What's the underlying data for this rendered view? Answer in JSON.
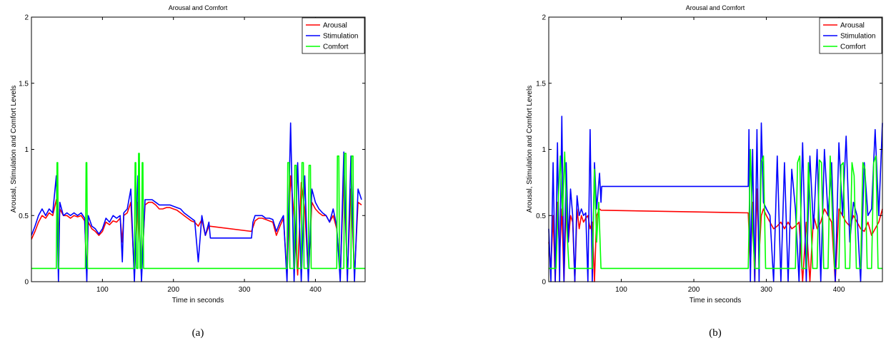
{
  "captions": [
    "(a)",
    "(b)"
  ],
  "chart_data": [
    {
      "type": "line",
      "title": "Arousal and Comfort",
      "xlabel": "Time in seconds",
      "ylabel": "Arousal, Stimulation and Comfort Levels",
      "xlim": [
        0,
        470
      ],
      "ylim": [
        0,
        2
      ],
      "xticks": [
        100,
        200,
        300,
        400
      ],
      "yticks": [
        0,
        0.5,
        1,
        1.5,
        2
      ],
      "legend": "top-right",
      "series": [
        {
          "name": "Arousal",
          "color": "#ff0000",
          "x": [
            0,
            5,
            10,
            15,
            20,
            25,
            30,
            35,
            38,
            40,
            45,
            50,
            55,
            60,
            65,
            70,
            75,
            78,
            80,
            85,
            90,
            95,
            100,
            105,
            110,
            115,
            120,
            125,
            128,
            130,
            135,
            140,
            145,
            150,
            155,
            160,
            165,
            170,
            175,
            180,
            185,
            190,
            195,
            200,
            205,
            210,
            215,
            220,
            225,
            230,
            235,
            240,
            245,
            250,
            310,
            315,
            320,
            325,
            330,
            335,
            340,
            345,
            350,
            355,
            360,
            365,
            370,
            375,
            380,
            385,
            390,
            395,
            400,
            405,
            410,
            415,
            420,
            425,
            430,
            435,
            440,
            445,
            450,
            455,
            460,
            465
          ],
          "y": [
            0.32,
            0.38,
            0.45,
            0.5,
            0.48,
            0.52,
            0.5,
            0.62,
            0.3,
            0.55,
            0.5,
            0.5,
            0.48,
            0.5,
            0.49,
            0.5,
            0.46,
            0.05,
            0.45,
            0.4,
            0.38,
            0.35,
            0.38,
            0.45,
            0.43,
            0.46,
            0.45,
            0.48,
            0.3,
            0.5,
            0.52,
            0.6,
            0.05,
            0.6,
            0.05,
            0.58,
            0.6,
            0.6,
            0.58,
            0.55,
            0.55,
            0.56,
            0.56,
            0.55,
            0.54,
            0.52,
            0.5,
            0.48,
            0.46,
            0.45,
            0.42,
            0.47,
            0.35,
            0.42,
            0.38,
            0.46,
            0.48,
            0.48,
            0.47,
            0.46,
            0.45,
            0.35,
            0.42,
            0.48,
            0.05,
            0.8,
            0.5,
            0.05,
            0.75,
            0.55,
            0.05,
            0.6,
            0.55,
            0.52,
            0.5,
            0.5,
            0.45,
            0.5,
            0.4,
            0.05,
            0.8,
            0.05,
            0.7,
            0.05,
            0.6,
            0.58
          ]
        },
        {
          "name": "Stimulation",
          "color": "#0000ff",
          "x": [
            0,
            5,
            10,
            15,
            20,
            25,
            30,
            35,
            38,
            40,
            45,
            50,
            55,
            60,
            65,
            70,
            75,
            78,
            80,
            85,
            90,
            95,
            100,
            105,
            110,
            115,
            120,
            125,
            128,
            130,
            135,
            140,
            145,
            150,
            155,
            160,
            165,
            170,
            175,
            180,
            185,
            190,
            195,
            200,
            205,
            210,
            215,
            220,
            225,
            230,
            235,
            240,
            245,
            250,
            252,
            310,
            312,
            315,
            320,
            325,
            330,
            335,
            340,
            345,
            350,
            355,
            360,
            365,
            370,
            375,
            380,
            385,
            390,
            395,
            400,
            405,
            410,
            415,
            420,
            425,
            430,
            435,
            440,
            445,
            450,
            455,
            460,
            465
          ],
          "y": [
            0.35,
            0.42,
            0.5,
            0.55,
            0.5,
            0.55,
            0.52,
            0.8,
            0.0,
            0.6,
            0.5,
            0.52,
            0.5,
            0.52,
            0.5,
            0.52,
            0.48,
            0.0,
            0.5,
            0.42,
            0.4,
            0.36,
            0.4,
            0.48,
            0.45,
            0.5,
            0.48,
            0.5,
            0.15,
            0.52,
            0.55,
            0.7,
            0.0,
            0.8,
            0.0,
            0.62,
            0.62,
            0.62,
            0.6,
            0.58,
            0.58,
            0.58,
            0.58,
            0.57,
            0.56,
            0.55,
            0.52,
            0.5,
            0.48,
            0.46,
            0.15,
            0.5,
            0.35,
            0.45,
            0.33,
            0.33,
            0.45,
            0.5,
            0.5,
            0.5,
            0.48,
            0.48,
            0.47,
            0.38,
            0.45,
            0.5,
            0.0,
            1.2,
            0.0,
            0.9,
            0.0,
            0.8,
            0.0,
            0.7,
            0.6,
            0.55,
            0.52,
            0.5,
            0.45,
            0.55,
            0.42,
            0.0,
            0.98,
            0.0,
            0.95,
            0.0,
            0.7,
            0.62
          ]
        },
        {
          "name": "Comfort",
          "color": "#00ff00",
          "x": [
            0,
            35,
            36,
            37,
            38,
            76,
            77,
            78,
            79,
            145,
            146,
            147,
            148,
            150,
            151,
            152,
            153,
            155,
            156,
            157,
            158,
            360,
            361,
            363,
            364,
            370,
            371,
            373,
            374,
            380,
            381,
            383,
            384,
            390,
            391,
            393,
            394,
            430,
            431,
            433,
            434,
            440,
            441,
            443,
            444,
            450,
            451,
            453,
            454,
            470
          ],
          "y": [
            0.1,
            0.1,
            0.9,
            0.9,
            0.1,
            0.1,
            0.9,
            0.9,
            0.1,
            0.1,
            0.9,
            0.9,
            0.1,
            0.1,
            0.97,
            0.97,
            0.1,
            0.1,
            0.9,
            0.9,
            0.1,
            0.1,
            0.9,
            0.9,
            0.1,
            0.1,
            0.88,
            0.88,
            0.1,
            0.1,
            0.9,
            0.9,
            0.1,
            0.1,
            0.88,
            0.88,
            0.1,
            0.1,
            0.95,
            0.95,
            0.1,
            0.1,
            0.97,
            0.97,
            0.1,
            0.1,
            0.95,
            0.95,
            0.1,
            0.1
          ]
        }
      ]
    },
    {
      "type": "line",
      "title": "Arousal and Comfort",
      "xlabel": "Time in seconds",
      "ylabel": "Arousal, Stimulation and Comfort Levels",
      "xlim": [
        0,
        460
      ],
      "ylim": [
        0,
        2
      ],
      "xticks": [
        100,
        200,
        300,
        400
      ],
      "yticks": [
        0,
        0.5,
        1,
        1.5,
        2
      ],
      "legend": "top-right",
      "series": [
        {
          "name": "Arousal",
          "color": "#ff0000",
          "x": [
            0,
            3,
            6,
            9,
            12,
            15,
            18,
            21,
            24,
            27,
            30,
            33,
            36,
            39,
            42,
            45,
            48,
            51,
            54,
            57,
            60,
            63,
            66,
            70,
            72,
            275,
            278,
            281,
            284,
            287,
            290,
            293,
            296,
            300,
            305,
            310,
            315,
            320,
            325,
            330,
            335,
            340,
            345,
            350,
            355,
            360,
            365,
            370,
            375,
            380,
            385,
            390,
            395,
            400,
            405,
            410,
            415,
            420,
            425,
            430,
            435,
            440,
            445,
            450,
            455,
            460
          ],
          "y": [
            0.3,
            0.1,
            0.5,
            0.0,
            0.6,
            0.2,
            0.55,
            0.0,
            0.6,
            0.3,
            0.5,
            0.45,
            0.0,
            0.55,
            0.4,
            0.5,
            0.45,
            0.48,
            0.5,
            0.4,
            0.45,
            0.0,
            0.5,
            0.55,
            0.54,
            0.52,
            0.1,
            0.6,
            0.0,
            0.7,
            0.2,
            0.5,
            0.55,
            0.5,
            0.45,
            0.4,
            0.42,
            0.45,
            0.4,
            0.45,
            0.4,
            0.42,
            0.45,
            0.0,
            0.45,
            0.0,
            0.5,
            0.4,
            0.45,
            0.55,
            0.5,
            0.45,
            0.0,
            0.55,
            0.5,
            0.45,
            0.42,
            0.5,
            0.45,
            0.4,
            0.38,
            0.45,
            0.35,
            0.4,
            0.45,
            0.55
          ]
        },
        {
          "name": "Stimulation",
          "color": "#0000ff",
          "x": [
            0,
            3,
            6,
            9,
            12,
            15,
            18,
            21,
            24,
            27,
            30,
            33,
            36,
            39,
            42,
            45,
            48,
            51,
            54,
            57,
            60,
            63,
            66,
            70,
            72,
            73,
            275,
            276,
            278,
            281,
            284,
            287,
            290,
            293,
            296,
            300,
            305,
            310,
            315,
            320,
            325,
            330,
            335,
            340,
            345,
            350,
            355,
            360,
            365,
            370,
            375,
            380,
            385,
            390,
            395,
            400,
            405,
            410,
            415,
            420,
            425,
            430,
            435,
            440,
            445,
            450,
            455,
            460
          ],
          "y": [
            0.4,
            0.0,
            0.9,
            0.0,
            1.05,
            0.0,
            1.25,
            0.0,
            0.9,
            0.3,
            0.7,
            0.5,
            0.0,
            0.65,
            0.5,
            0.55,
            0.5,
            0.52,
            0.0,
            1.15,
            0.0,
            0.9,
            0.55,
            0.82,
            0.6,
            0.72,
            0.72,
            1.15,
            0.0,
            1.0,
            0.0,
            1.15,
            0.0,
            1.2,
            0.6,
            0.55,
            0.5,
            0.0,
            0.95,
            0.0,
            0.9,
            0.0,
            0.85,
            0.55,
            0.0,
            1.05,
            0.0,
            0.95,
            0.4,
            1.0,
            0.0,
            1.0,
            0.5,
            0.9,
            0.0,
            1.05,
            0.5,
            1.1,
            0.3,
            0.6,
            0.5,
            0.0,
            0.9,
            0.5,
            0.55,
            1.15,
            0.5,
            1.2
          ]
        },
        {
          "name": "Comfort",
          "color": "#00ff00",
          "x": [
            0,
            10,
            13,
            16,
            19,
            22,
            25,
            28,
            60,
            63,
            66,
            69,
            72,
            275,
            278,
            281,
            284,
            290,
            293,
            296,
            299,
            340,
            343,
            346,
            349,
            355,
            358,
            361,
            364,
            370,
            373,
            376,
            379,
            385,
            388,
            391,
            394,
            400,
            403,
            406,
            409,
            415,
            418,
            421,
            424,
            430,
            433,
            436,
            439,
            445,
            448,
            451,
            454,
            460
          ],
          "y": [
            0.1,
            0.1,
            0.6,
            0.95,
            0.5,
            0.98,
            0.4,
            0.1,
            0.1,
            0.85,
            0.3,
            0.6,
            0.1,
            0.1,
            1.0,
            0.4,
            0.1,
            0.1,
            0.9,
            0.95,
            0.1,
            0.1,
            0.9,
            0.95,
            0.1,
            0.1,
            0.9,
            0.5,
            0.1,
            0.1,
            0.92,
            0.9,
            0.1,
            0.1,
            0.95,
            0.5,
            0.1,
            0.1,
            0.88,
            0.9,
            0.1,
            0.1,
            0.9,
            0.8,
            0.1,
            0.1,
            0.9,
            0.85,
            0.1,
            0.1,
            0.9,
            0.95,
            0.1,
            0.1
          ]
        }
      ]
    }
  ]
}
